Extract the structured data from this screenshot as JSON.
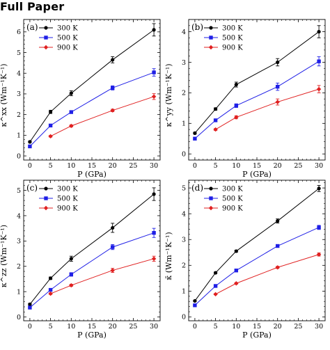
{
  "header": {
    "title": "Full Paper"
  },
  "colors": {
    "300 K": "#000000",
    "500 K": "#1f1fe6",
    "900 K": "#e02020"
  },
  "chart_data": [
    {
      "type": "line",
      "panel_label": "(a)",
      "xlabel": "P (GPa)",
      "ylabel": "κ^xx (Wm⁻¹K⁻¹)",
      "xlim": [
        -1.5,
        31.5
      ],
      "ylim": [
        -0.2,
        6.6
      ],
      "xticks": [
        0,
        5,
        10,
        15,
        20,
        25,
        30
      ],
      "yticks": [
        0,
        1,
        2,
        3,
        4,
        5,
        6
      ],
      "legend": "top-left",
      "series": [
        {
          "name": "300 K",
          "marker": "circle",
          "x": [
            0,
            5,
            10,
            20,
            30
          ],
          "y": [
            0.68,
            2.13,
            3.03,
            4.65,
            6.1
          ],
          "err": [
            0.04,
            0.08,
            0.12,
            0.15,
            0.3
          ]
        },
        {
          "name": "500 K",
          "marker": "square",
          "x": [
            0,
            5,
            10,
            20,
            30
          ],
          "y": [
            0.46,
            1.47,
            2.12,
            3.29,
            4.04
          ],
          "err": [
            0.03,
            0.05,
            0.06,
            0.1,
            0.18
          ]
        },
        {
          "name": "900 K",
          "marker": "diamond",
          "x": [
            5,
            10,
            20,
            30
          ],
          "y": [
            0.95,
            1.45,
            2.2,
            2.87
          ],
          "err": [
            0.04,
            0.05,
            0.06,
            0.14
          ]
        }
      ]
    },
    {
      "type": "line",
      "panel_label": "(b)",
      "xlabel": "P (GPa)",
      "ylabel": "κ^yy (Wm⁻¹K⁻¹)",
      "xlim": [
        -1.5,
        31.5
      ],
      "ylim": [
        -0.2,
        4.4
      ],
      "xticks": [
        0,
        5,
        10,
        15,
        20,
        25,
        30
      ],
      "yticks": [
        0,
        1,
        2,
        3,
        4
      ],
      "legend": "top-left",
      "series": [
        {
          "name": "300 K",
          "marker": "circle",
          "x": [
            0,
            5,
            10,
            20,
            30
          ],
          "y": [
            0.68,
            1.47,
            2.27,
            3.0,
            4.0
          ],
          "err": [
            0.03,
            0.04,
            0.08,
            0.12,
            0.2
          ]
        },
        {
          "name": "500 K",
          "marker": "square",
          "x": [
            0,
            5,
            10,
            20,
            30
          ],
          "y": [
            0.5,
            1.1,
            1.58,
            2.2,
            3.03
          ],
          "err": [
            0.02,
            0.04,
            0.06,
            0.12,
            0.15
          ]
        },
        {
          "name": "900 K",
          "marker": "diamond",
          "x": [
            5,
            10,
            20,
            30
          ],
          "y": [
            0.8,
            1.2,
            1.7,
            2.12
          ],
          "err": [
            0.03,
            0.05,
            0.1,
            0.12
          ]
        }
      ]
    },
    {
      "type": "line",
      "panel_label": "(c)",
      "xlabel": "P (GPa)",
      "ylabel": "κ^zz (Wm⁻¹K⁻¹)",
      "xlim": [
        -1.5,
        31.5
      ],
      "ylim": [
        -0.15,
        5.4
      ],
      "xticks": [
        0,
        5,
        10,
        15,
        20,
        25,
        30
      ],
      "yticks": [
        0,
        1,
        2,
        3,
        4,
        5
      ],
      "legend": "top-left",
      "series": [
        {
          "name": "300 K",
          "marker": "circle",
          "x": [
            0,
            5,
            10,
            20,
            30
          ],
          "y": [
            0.5,
            1.53,
            2.3,
            3.52,
            4.85
          ],
          "err": [
            0.04,
            0.05,
            0.1,
            0.18,
            0.25
          ]
        },
        {
          "name": "500 K",
          "marker": "square",
          "x": [
            0,
            5,
            10,
            20,
            30
          ],
          "y": [
            0.37,
            1.07,
            1.68,
            2.76,
            3.32
          ],
          "err": [
            0.03,
            0.04,
            0.07,
            0.1,
            0.18
          ]
        },
        {
          "name": "900 K",
          "marker": "diamond",
          "x": [
            5,
            10,
            20,
            30
          ],
          "y": [
            0.92,
            1.25,
            1.84,
            2.3
          ],
          "err": [
            0.03,
            0.04,
            0.08,
            0.1
          ]
        }
      ]
    },
    {
      "type": "line",
      "panel_label": "(d)",
      "xlabel": "P (GPa)",
      "ylabel": "κ̄ (Wm⁻¹K⁻¹)",
      "xlim": [
        -1.5,
        31.5
      ],
      "ylim": [
        -0.15,
        5.3
      ],
      "xticks": [
        0,
        5,
        10,
        15,
        20,
        25,
        30
      ],
      "yticks": [
        0,
        1,
        2,
        3,
        4,
        5
      ],
      "legend": "top-left",
      "series": [
        {
          "name": "300 K",
          "marker": "circle",
          "x": [
            0,
            5,
            10,
            20,
            30
          ],
          "y": [
            0.62,
            1.71,
            2.55,
            3.72,
            4.98
          ],
          "err": [
            0.02,
            0.03,
            0.04,
            0.08,
            0.12
          ]
        },
        {
          "name": "500 K",
          "marker": "square",
          "x": [
            0,
            5,
            10,
            20,
            30
          ],
          "y": [
            0.45,
            1.2,
            1.8,
            2.75,
            3.47
          ],
          "err": [
            0.02,
            0.03,
            0.04,
            0.05,
            0.08
          ]
        },
        {
          "name": "900 K",
          "marker": "diamond",
          "x": [
            5,
            10,
            20,
            30
          ],
          "y": [
            0.88,
            1.3,
            1.92,
            2.42
          ],
          "err": [
            0.02,
            0.03,
            0.04,
            0.06
          ]
        }
      ]
    }
  ]
}
